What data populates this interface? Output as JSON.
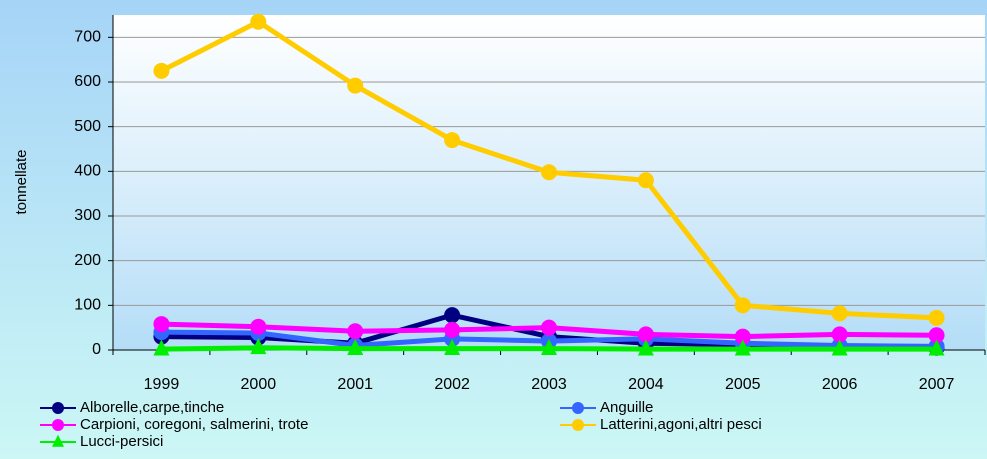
{
  "chart_data": {
    "type": "line",
    "y_label": "tonnellate",
    "categories": [
      "1999",
      "2000",
      "2001",
      "2002",
      "2003",
      "2004",
      "2005",
      "2006",
      "2007"
    ],
    "series": [
      {
        "name": "Alborelle,carpe,tinche",
        "color": "#000080",
        "marker": "circle",
        "values": [
          30,
          28,
          15,
          78,
          30,
          15,
          12,
          8,
          5
        ]
      },
      {
        "name": "Anguille",
        "color": "#3366ff",
        "marker": "circle",
        "values": [
          40,
          38,
          10,
          25,
          20,
          25,
          15,
          10,
          8
        ]
      },
      {
        "name": "Carpioni, coregoni, salmerini, trote",
        "color": "#ff00ff",
        "marker": "circle",
        "values": [
          58,
          52,
          42,
          45,
          50,
          35,
          30,
          35,
          33
        ]
      },
      {
        "name": "Latterini,agoni,altri pesci",
        "color": "#ffcc00",
        "marker": "circle",
        "values": [
          625,
          735,
          592,
          470,
          398,
          380,
          100,
          82,
          72
        ]
      },
      {
        "name": "Lucci-persici",
        "color": "#00ee00",
        "marker": "triangle",
        "values": [
          2,
          5,
          3,
          3,
          3,
          2,
          2,
          2,
          2
        ]
      }
    ],
    "ylim": [
      0,
      750
    ],
    "yticks": [
      0,
      100,
      200,
      300,
      400,
      500,
      600,
      700
    ],
    "grid": true,
    "legend": "bottom"
  }
}
